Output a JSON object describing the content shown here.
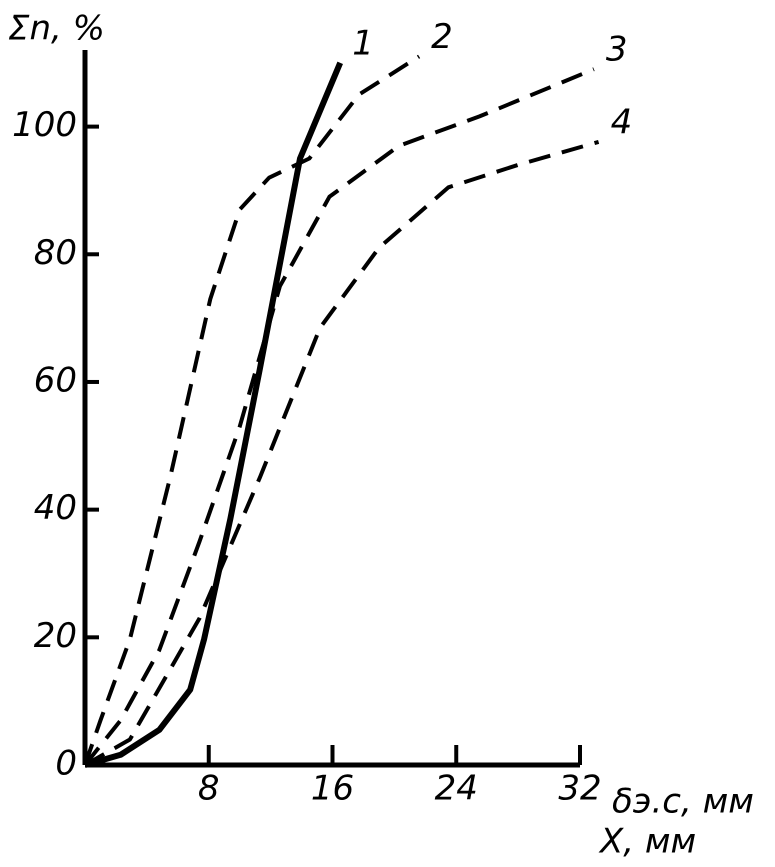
{
  "chart_data": {
    "type": "line",
    "ylabel": "Σn, %",
    "xlabel": "δэ.с, мм",
    "xlabel2": "X, мм",
    "xlim": [
      0,
      32
    ],
    "ylim": [
      0,
      112
    ],
    "xticks": [
      8,
      16,
      24,
      32
    ],
    "yticks": [
      0,
      20,
      40,
      60,
      80,
      100
    ],
    "series": [
      {
        "name": "1",
        "color": "#000000",
        "dashed": false,
        "x": [
          0,
          2.3,
          4.8,
          6.8,
          7.7,
          9.4,
          11.3,
          13.9,
          16.5
        ],
        "values": [
          0,
          1.6,
          5.5,
          11.8,
          19.7,
          38.6,
          62,
          95,
          110
        ]
      },
      {
        "name": "2",
        "color": "#000000",
        "dashed": true,
        "x": [
          0,
          1,
          2.9,
          5.5,
          8.1,
          10,
          11.9,
          14.5,
          17.7,
          21.6
        ],
        "values": [
          0,
          7,
          19.7,
          45,
          73,
          87,
          92,
          95,
          105,
          111
        ]
      },
      {
        "name": "3",
        "color": "#000000",
        "dashed": true,
        "x": [
          0,
          2.3,
          4.8,
          7.4,
          10,
          12.6,
          15.8,
          20.3,
          25.5,
          32.9
        ],
        "values": [
          0,
          7,
          18,
          35,
          53,
          75,
          89,
          97,
          101.6,
          109
        ]
      },
      {
        "name": "4",
        "color": "#000000",
        "dashed": true,
        "x": [
          0,
          2.9,
          7.4,
          11.3,
          15.2,
          19,
          23.5,
          28,
          33.2
        ],
        "values": [
          0,
          4,
          23,
          45,
          68.5,
          81,
          90.5,
          94,
          97.6
        ]
      }
    ]
  }
}
